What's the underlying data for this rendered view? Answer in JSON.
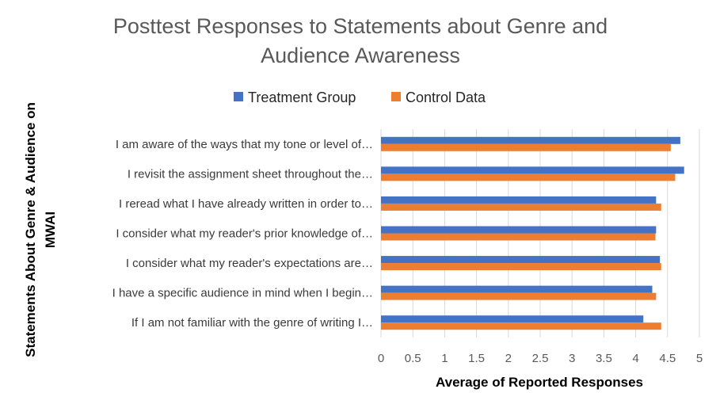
{
  "chart_data": {
    "type": "bar",
    "orientation": "horizontal",
    "title": "Posttest Responses to Statements about Genre and Audience Awareness",
    "title_lines": [
      "Posttest Responses to Statements about Genre and",
      "Audience Awareness"
    ],
    "xlabel": "Average of Reported Responses",
    "ylabel_lines": [
      "Statements About Genre & Audience on",
      "MWAI"
    ],
    "xlim": [
      0,
      5
    ],
    "xticks": [
      "0",
      "0.5",
      "1",
      "1.5",
      "2",
      "2.5",
      "3",
      "3.5",
      "4",
      "4.5",
      "5"
    ],
    "grid": true,
    "legend_position": "top",
    "categories": [
      "I am aware of the ways that my tone or level of…",
      "I revisit the assignment sheet throughout the…",
      "I reread what I have already written in order to…",
      "I consider what my reader's prior knowledge of…",
      "I consider what my reader's expectations are…",
      "I have a specific audience in mind when I begin…",
      "If I am not familiar with the genre of writing I…"
    ],
    "series": [
      {
        "name": "Treatment Group",
        "color": "#4472C4",
        "values": [
          4.7,
          4.76,
          4.32,
          4.32,
          4.38,
          4.26,
          4.12
        ]
      },
      {
        "name": "Control Data",
        "color": "#ED7D31",
        "values": [
          4.55,
          4.62,
          4.4,
          4.31,
          4.4,
          4.32,
          4.4
        ]
      }
    ]
  }
}
